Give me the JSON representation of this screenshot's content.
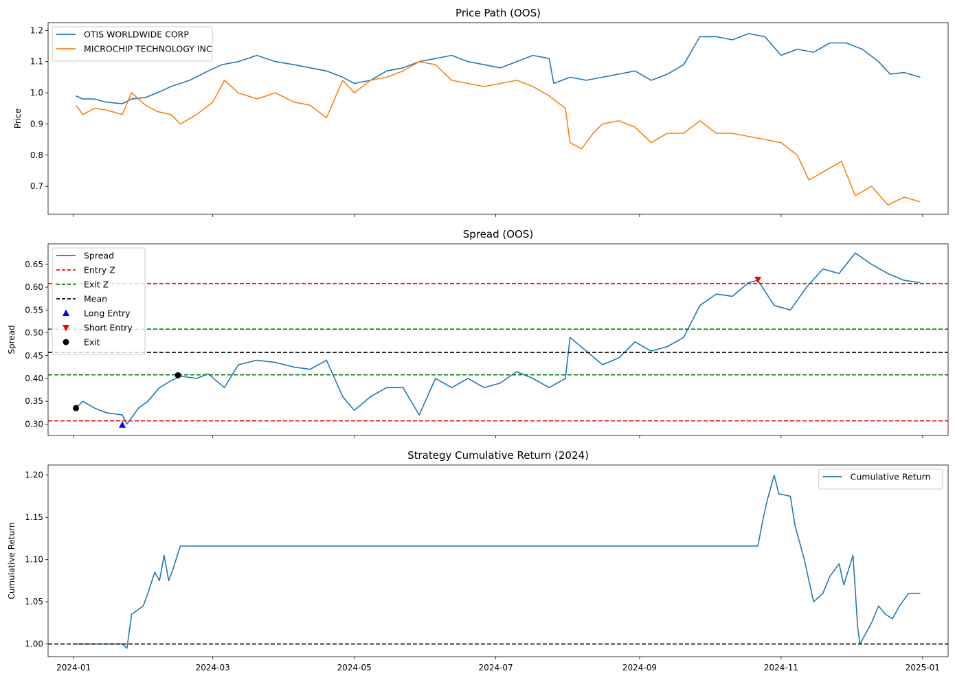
{
  "chart_data": [
    {
      "type": "line",
      "title": "Price Path (OOS)",
      "xlabel": "",
      "ylabel": "Price",
      "ylim": [
        0.61,
        1.225
      ],
      "yticks": [
        "0.7",
        "0.8",
        "0.9",
        "1.0",
        "1.1",
        "1.2"
      ],
      "xticks": [
        "2024-01",
        "2024-03",
        "2024-05",
        "2024-07",
        "2024-09",
        "2024-11",
        "2025-01"
      ],
      "show_xtick_labels": false,
      "legend_position": "upper left",
      "series": [
        {
          "name": "OTIS WORLDWIDE CORP",
          "color": "#1f77b4",
          "points": [
            [
              "2024-01-02",
              0.99
            ],
            [
              "2024-01-05",
              0.98
            ],
            [
              "2024-01-10",
              0.98
            ],
            [
              "2024-01-15",
              0.97
            ],
            [
              "2024-01-22",
              0.965
            ],
            [
              "2024-01-26",
              0.98
            ],
            [
              "2024-02-01",
              0.985
            ],
            [
              "2024-02-06",
              1.0
            ],
            [
              "2024-02-12",
              1.02
            ],
            [
              "2024-02-20",
              1.04
            ],
            [
              "2024-02-28",
              1.07
            ],
            [
              "2024-03-05",
              1.09
            ],
            [
              "2024-03-12",
              1.1
            ],
            [
              "2024-03-20",
              1.12
            ],
            [
              "2024-03-28",
              1.1
            ],
            [
              "2024-04-05",
              1.09
            ],
            [
              "2024-04-12",
              1.08
            ],
            [
              "2024-04-19",
              1.07
            ],
            [
              "2024-04-26",
              1.05
            ],
            [
              "2024-05-01",
              1.03
            ],
            [
              "2024-05-08",
              1.04
            ],
            [
              "2024-05-15",
              1.07
            ],
            [
              "2024-05-22",
              1.08
            ],
            [
              "2024-05-29",
              1.1
            ],
            [
              "2024-06-05",
              1.11
            ],
            [
              "2024-06-12",
              1.12
            ],
            [
              "2024-06-19",
              1.1
            ],
            [
              "2024-06-26",
              1.09
            ],
            [
              "2024-07-03",
              1.08
            ],
            [
              "2024-07-10",
              1.1
            ],
            [
              "2024-07-17",
              1.12
            ],
            [
              "2024-07-24",
              1.11
            ],
            [
              "2024-07-26",
              1.03
            ],
            [
              "2024-08-02",
              1.05
            ],
            [
              "2024-08-09",
              1.04
            ],
            [
              "2024-08-16",
              1.05
            ],
            [
              "2024-08-23",
              1.06
            ],
            [
              "2024-08-30",
              1.07
            ],
            [
              "2024-09-06",
              1.04
            ],
            [
              "2024-09-13",
              1.06
            ],
            [
              "2024-09-20",
              1.09
            ],
            [
              "2024-09-27",
              1.18
            ],
            [
              "2024-10-04",
              1.18
            ],
            [
              "2024-10-11",
              1.17
            ],
            [
              "2024-10-18",
              1.19
            ],
            [
              "2024-10-25",
              1.18
            ],
            [
              "2024-11-01",
              1.12
            ],
            [
              "2024-11-08",
              1.14
            ],
            [
              "2024-11-15",
              1.13
            ],
            [
              "2024-11-22",
              1.16
            ],
            [
              "2024-11-29",
              1.16
            ],
            [
              "2024-12-06",
              1.14
            ],
            [
              "2024-12-13",
              1.1
            ],
            [
              "2024-12-18",
              1.06
            ],
            [
              "2024-12-24",
              1.065
            ],
            [
              "2024-12-31",
              1.05
            ]
          ]
        },
        {
          "name": "MICROCHIP TECHNOLOGY INC",
          "color": "#ff7f0e",
          "points": [
            [
              "2024-01-02",
              0.96
            ],
            [
              "2024-01-05",
              0.93
            ],
            [
              "2024-01-10",
              0.95
            ],
            [
              "2024-01-15",
              0.945
            ],
            [
              "2024-01-22",
              0.93
            ],
            [
              "2024-01-26",
              1.0
            ],
            [
              "2024-02-01",
              0.96
            ],
            [
              "2024-02-06",
              0.94
            ],
            [
              "2024-02-12",
              0.93
            ],
            [
              "2024-02-16",
              0.9
            ],
            [
              "2024-02-23",
              0.93
            ],
            [
              "2024-03-01",
              0.97
            ],
            [
              "2024-03-06",
              1.04
            ],
            [
              "2024-03-12",
              1.0
            ],
            [
              "2024-03-20",
              0.98
            ],
            [
              "2024-03-28",
              1.0
            ],
            [
              "2024-04-05",
              0.97
            ],
            [
              "2024-04-12",
              0.96
            ],
            [
              "2024-04-19",
              0.92
            ],
            [
              "2024-04-26",
              1.04
            ],
            [
              "2024-05-01",
              1.0
            ],
            [
              "2024-05-08",
              1.04
            ],
            [
              "2024-05-15",
              1.05
            ],
            [
              "2024-05-22",
              1.07
            ],
            [
              "2024-05-29",
              1.1
            ],
            [
              "2024-06-05",
              1.09
            ],
            [
              "2024-06-12",
              1.04
            ],
            [
              "2024-06-19",
              1.03
            ],
            [
              "2024-06-26",
              1.02
            ],
            [
              "2024-07-03",
              1.03
            ],
            [
              "2024-07-10",
              1.04
            ],
            [
              "2024-07-17",
              1.02
            ],
            [
              "2024-07-24",
              0.99
            ],
            [
              "2024-07-31",
              0.95
            ],
            [
              "2024-08-02",
              0.84
            ],
            [
              "2024-08-07",
              0.82
            ],
            [
              "2024-08-12",
              0.87
            ],
            [
              "2024-08-16",
              0.9
            ],
            [
              "2024-08-23",
              0.91
            ],
            [
              "2024-08-30",
              0.89
            ],
            [
              "2024-09-06",
              0.84
            ],
            [
              "2024-09-13",
              0.87
            ],
            [
              "2024-09-20",
              0.87
            ],
            [
              "2024-09-27",
              0.91
            ],
            [
              "2024-10-04",
              0.87
            ],
            [
              "2024-10-11",
              0.87
            ],
            [
              "2024-10-18",
              0.86
            ],
            [
              "2024-10-25",
              0.85
            ],
            [
              "2024-11-01",
              0.84
            ],
            [
              "2024-11-08",
              0.8
            ],
            [
              "2024-11-13",
              0.72
            ],
            [
              "2024-11-20",
              0.75
            ],
            [
              "2024-11-27",
              0.78
            ],
            [
              "2024-12-03",
              0.67
            ],
            [
              "2024-12-10",
              0.7
            ],
            [
              "2024-12-17",
              0.64
            ],
            [
              "2024-12-24",
              0.665
            ],
            [
              "2024-12-31",
              0.65
            ]
          ]
        }
      ]
    },
    {
      "type": "line",
      "title": "Spread (OOS)",
      "xlabel": "",
      "ylabel": "Spread",
      "ylim": [
        0.275,
        0.695
      ],
      "yticks": [
        "0.30",
        "0.35",
        "0.40",
        "0.45",
        "0.50",
        "0.55",
        "0.60",
        "0.65"
      ],
      "xticks": [
        "2024-01",
        "2024-03",
        "2024-05",
        "2024-07",
        "2024-09",
        "2024-11",
        "2025-01"
      ],
      "show_xtick_labels": false,
      "legend_position": "upper left",
      "series": [
        {
          "name": "Spread",
          "color": "#1f77b4",
          "points": [
            [
              "2024-01-02",
              0.335
            ],
            [
              "2024-01-05",
              0.35
            ],
            [
              "2024-01-10",
              0.335
            ],
            [
              "2024-01-15",
              0.325
            ],
            [
              "2024-01-22",
              0.32
            ],
            [
              "2024-01-24",
              0.3
            ],
            [
              "2024-01-29",
              0.335
            ],
            [
              "2024-02-02",
              0.35
            ],
            [
              "2024-02-07",
              0.38
            ],
            [
              "2024-02-12",
              0.395
            ],
            [
              "2024-02-16",
              0.405
            ],
            [
              "2024-02-23",
              0.4
            ],
            [
              "2024-02-28",
              0.41
            ],
            [
              "2024-03-06",
              0.38
            ],
            [
              "2024-03-12",
              0.43
            ],
            [
              "2024-03-20",
              0.44
            ],
            [
              "2024-03-28",
              0.435
            ],
            [
              "2024-04-05",
              0.425
            ],
            [
              "2024-04-12",
              0.42
            ],
            [
              "2024-04-19",
              0.44
            ],
            [
              "2024-04-26",
              0.36
            ],
            [
              "2024-05-01",
              0.33
            ],
            [
              "2024-05-08",
              0.36
            ],
            [
              "2024-05-15",
              0.38
            ],
            [
              "2024-05-22",
              0.38
            ],
            [
              "2024-05-29",
              0.32
            ],
            [
              "2024-06-05",
              0.4
            ],
            [
              "2024-06-12",
              0.38
            ],
            [
              "2024-06-19",
              0.4
            ],
            [
              "2024-06-26",
              0.38
            ],
            [
              "2024-07-03",
              0.39
            ],
            [
              "2024-07-10",
              0.415
            ],
            [
              "2024-07-17",
              0.4
            ],
            [
              "2024-07-24",
              0.38
            ],
            [
              "2024-07-31",
              0.4
            ],
            [
              "2024-08-02",
              0.49
            ],
            [
              "2024-08-09",
              0.46
            ],
            [
              "2024-08-16",
              0.43
            ],
            [
              "2024-08-23",
              0.445
            ],
            [
              "2024-08-30",
              0.48
            ],
            [
              "2024-09-06",
              0.46
            ],
            [
              "2024-09-13",
              0.47
            ],
            [
              "2024-09-20",
              0.49
            ],
            [
              "2024-09-27",
              0.56
            ],
            [
              "2024-10-04",
              0.585
            ],
            [
              "2024-10-11",
              0.58
            ],
            [
              "2024-10-18",
              0.61
            ],
            [
              "2024-10-22",
              0.615
            ],
            [
              "2024-10-29",
              0.56
            ],
            [
              "2024-11-05",
              0.55
            ],
            [
              "2024-11-12",
              0.6
            ],
            [
              "2024-11-19",
              0.64
            ],
            [
              "2024-11-26",
              0.63
            ],
            [
              "2024-12-03",
              0.675
            ],
            [
              "2024-12-10",
              0.65
            ],
            [
              "2024-12-17",
              0.63
            ],
            [
              "2024-12-24",
              0.615
            ],
            [
              "2024-12-31",
              0.61
            ]
          ]
        }
      ],
      "hlines": [
        {
          "name": "Entry Z",
          "y": 0.307,
          "color": "#ff0000",
          "style": "dashed"
        },
        {
          "name": "Entry Z",
          "y": 0.608,
          "color": "#ff0000",
          "style": "dashed",
          "nolegend": true
        },
        {
          "name": "Exit Z",
          "y": 0.408,
          "color": "#008000",
          "style": "dashed"
        },
        {
          "name": "Exit Z",
          "y": 0.508,
          "color": "#008000",
          "style": "dashed",
          "nolegend": true
        },
        {
          "name": "Mean",
          "y": 0.457,
          "color": "#000000",
          "style": "dashed"
        }
      ],
      "markers": [
        {
          "name": "Long Entry",
          "symbol": "triangle-up",
          "color": "#0000ff",
          "points": [
            [
              "2024-01-22",
              0.298
            ]
          ]
        },
        {
          "name": "Short Entry",
          "symbol": "triangle-down",
          "color": "#ff0000",
          "points": [
            [
              "2024-10-22",
              0.617
            ]
          ]
        },
        {
          "name": "Exit",
          "symbol": "circle",
          "color": "#000000",
          "points": [
            [
              "2024-01-02",
              0.335
            ],
            [
              "2024-02-15",
              0.407
            ]
          ]
        }
      ]
    },
    {
      "type": "line",
      "title": "Strategy Cumulative Return (2024)",
      "xlabel": "",
      "ylabel": "Cumulative Return",
      "ylim": [
        0.985,
        1.212
      ],
      "yticks": [
        "1.00",
        "1.05",
        "1.10",
        "1.15",
        "1.20"
      ],
      "xticks": [
        "2024-01",
        "2024-03",
        "2024-05",
        "2024-07",
        "2024-09",
        "2024-11",
        "2025-01"
      ],
      "show_xtick_labels": true,
      "legend_position": "upper right",
      "series": [
        {
          "name": "Cumulative Return",
          "color": "#1f77b4",
          "points": [
            [
              "2024-01-02",
              1.0
            ],
            [
              "2024-01-22",
              1.0
            ],
            [
              "2024-01-24",
              0.995
            ],
            [
              "2024-01-26",
              1.035
            ],
            [
              "2024-01-31",
              1.045
            ],
            [
              "2024-02-02",
              1.06
            ],
            [
              "2024-02-05",
              1.085
            ],
            [
              "2024-02-07",
              1.075
            ],
            [
              "2024-02-09",
              1.105
            ],
            [
              "2024-02-11",
              1.075
            ],
            [
              "2024-02-13",
              1.09
            ],
            [
              "2024-02-16",
              1.116
            ],
            [
              "2024-10-22",
              1.116
            ],
            [
              "2024-10-24",
              1.145
            ],
            [
              "2024-10-26",
              1.17
            ],
            [
              "2024-10-29",
              1.2
            ],
            [
              "2024-10-31",
              1.178
            ],
            [
              "2024-11-05",
              1.175
            ],
            [
              "2024-11-07",
              1.14
            ],
            [
              "2024-11-11",
              1.1
            ],
            [
              "2024-11-13",
              1.075
            ],
            [
              "2024-11-15",
              1.05
            ],
            [
              "2024-11-19",
              1.06
            ],
            [
              "2024-11-22",
              1.08
            ],
            [
              "2024-11-26",
              1.095
            ],
            [
              "2024-11-28",
              1.07
            ],
            [
              "2024-12-02",
              1.105
            ],
            [
              "2024-12-04",
              1.02
            ],
            [
              "2024-12-05",
              1.0
            ],
            [
              "2024-12-10",
              1.025
            ],
            [
              "2024-12-13",
              1.045
            ],
            [
              "2024-12-16",
              1.035
            ],
            [
              "2024-12-19",
              1.03
            ],
            [
              "2024-12-22",
              1.045
            ],
            [
              "2024-12-26",
              1.06
            ],
            [
              "2024-12-31",
              1.06
            ]
          ]
        }
      ],
      "hlines": [
        {
          "name": "",
          "y": 1.0,
          "color": "#000000",
          "style": "dashed",
          "nolegend": true
        }
      ],
      "markers": []
    }
  ]
}
